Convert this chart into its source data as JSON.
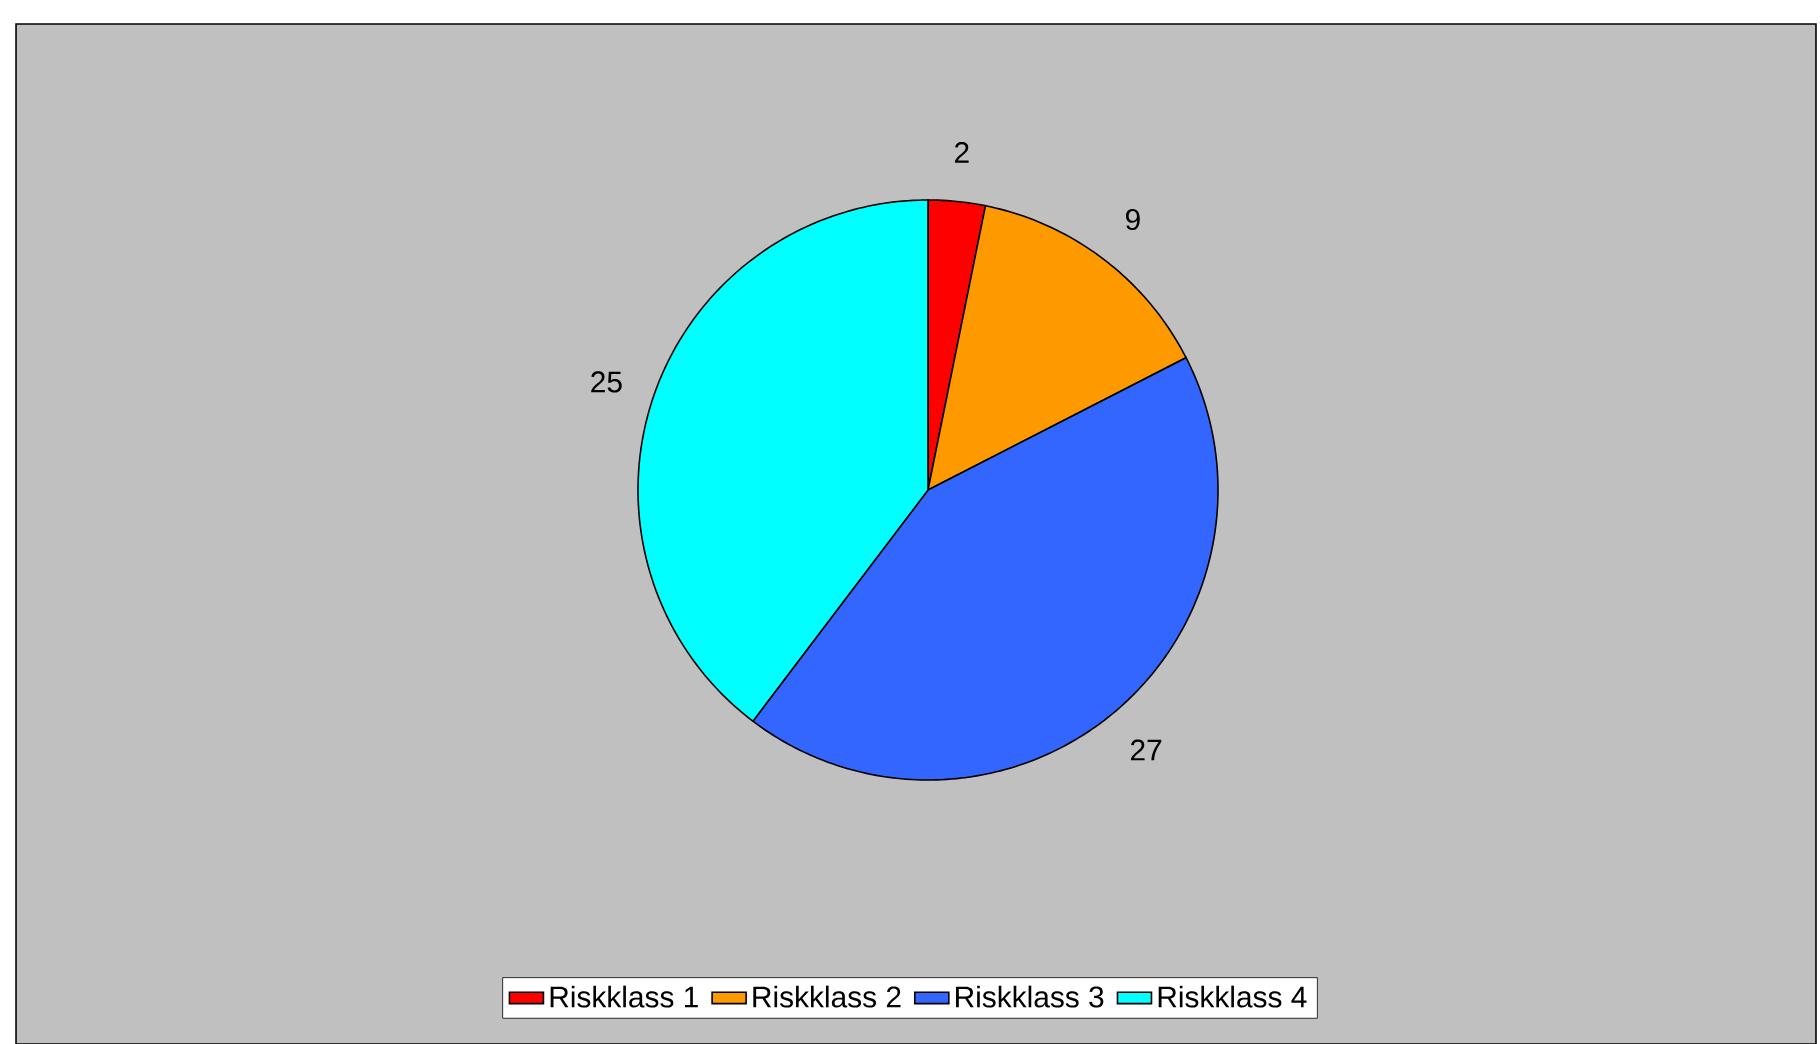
{
  "chart_data": {
    "type": "pie",
    "categories": [
      "Riskklass 1",
      "Riskklass 2",
      "Riskklass 3",
      "Riskklass 4"
    ],
    "values": [
      2,
      9,
      27,
      25
    ],
    "colors": [
      "#ff0000",
      "#ff9900",
      "#3366ff",
      "#00ffff"
    ],
    "data_labels": true,
    "legend": "bottom"
  }
}
